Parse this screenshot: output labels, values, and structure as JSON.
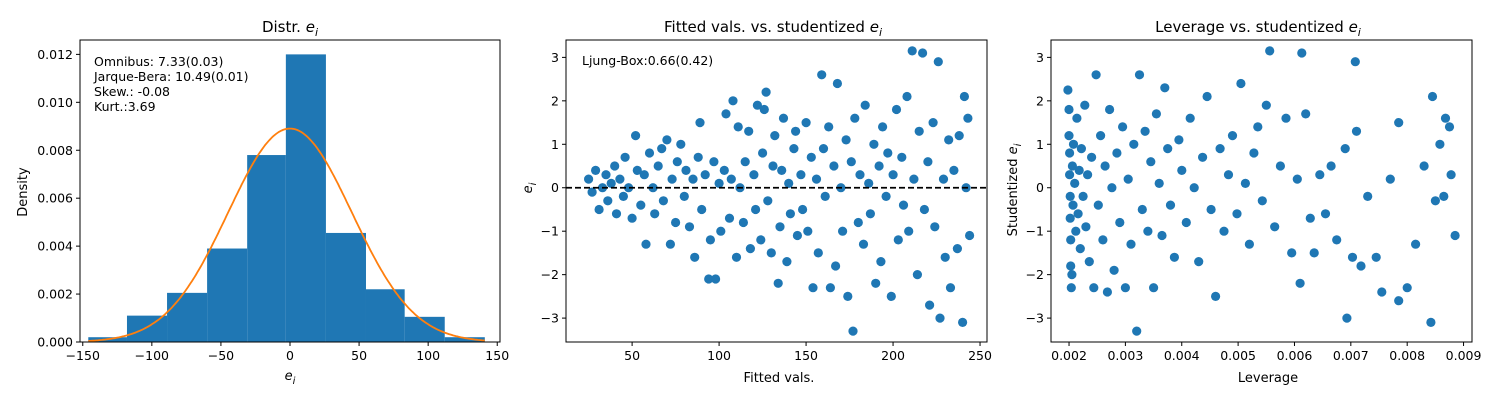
{
  "colors": {
    "primary": "#1f77b4",
    "density_curve": "#ff7f0e",
    "zero_line": "#000000"
  },
  "chart_data": [
    {
      "type": "bar",
      "title": "Distr. e_i",
      "xlabel": "e_i",
      "ylabel": "Density",
      "xlim": [
        -152,
        152
      ],
      "ylim": [
        0,
        0.0126
      ],
      "xticks": [
        "-150",
        "-100",
        "-50",
        "0",
        "50",
        "100",
        "150"
      ],
      "yticks": [
        "0.000",
        "0.002",
        "0.004",
        "0.006",
        "0.008",
        "0.010",
        "0.012"
      ],
      "bin_edges": [
        -146,
        -118,
        -89,
        -60,
        -31,
        -3,
        26,
        55,
        83,
        112,
        141
      ],
      "values": [
        0.0002,
        0.0011,
        0.00205,
        0.0039,
        0.0078,
        0.012,
        0.00455,
        0.0022,
        0.00105,
        0.0002
      ],
      "density_curve": {
        "mean": 0,
        "sd": 44.8
      },
      "annotations": [
        "Omnibus: 7.33(0.03)",
        "Jarque-Bera: 10.49(0.01)",
        "Skew.: -0.08",
        "Kurt.:3.69"
      ]
    },
    {
      "type": "scatter",
      "title": "Fitted vals. vs. studentized e_i",
      "xlabel": "Fitted vals.",
      "ylabel": "e_i",
      "xlim": [
        12,
        254
      ],
      "ylim": [
        -3.55,
        3.4
      ],
      "xticks": [
        "50",
        "100",
        "150",
        "200",
        "250"
      ],
      "yticks": [
        "-3",
        "-2",
        "-1",
        "0",
        "1",
        "2",
        "3"
      ],
      "reference_line": 0,
      "annotations": [
        "Ljung-Box:0.66(0.42)"
      ],
      "points": [
        [
          25,
          0.2
        ],
        [
          27,
          -0.1
        ],
        [
          29,
          0.4
        ],
        [
          31,
          -0.5
        ],
        [
          33,
          0.0
        ],
        [
          35,
          0.3
        ],
        [
          36,
          -0.3
        ],
        [
          38,
          0.1
        ],
        [
          40,
          0.5
        ],
        [
          41,
          -0.6
        ],
        [
          43,
          0.2
        ],
        [
          45,
          -0.2
        ],
        [
          46,
          0.7
        ],
        [
          48,
          0.0
        ],
        [
          50,
          -0.7
        ],
        [
          52,
          1.2
        ],
        [
          53,
          0.4
        ],
        [
          55,
          -0.4
        ],
        [
          57,
          0.3
        ],
        [
          58,
          -1.3
        ],
        [
          60,
          0.8
        ],
        [
          62,
          0.0
        ],
        [
          63,
          -0.6
        ],
        [
          65,
          0.5
        ],
        [
          67,
          0.9
        ],
        [
          68,
          -0.3
        ],
        [
          70,
          1.1
        ],
        [
          72,
          -1.3
        ],
        [
          73,
          0.2
        ],
        [
          75,
          -0.8
        ],
        [
          76,
          0.6
        ],
        [
          78,
          1.0
        ],
        [
          80,
          -0.2
        ],
        [
          81,
          0.4
        ],
        [
          83,
          -0.9
        ],
        [
          85,
          0.2
        ],
        [
          86,
          -1.6
        ],
        [
          88,
          0.7
        ],
        [
          89,
          1.5
        ],
        [
          90,
          -0.5
        ],
        [
          92,
          0.3
        ],
        [
          94,
          -2.1
        ],
        [
          95,
          -1.2
        ],
        [
          97,
          0.6
        ],
        [
          98,
          -2.1
        ],
        [
          100,
          0.1
        ],
        [
          101,
          -1.0
        ],
        [
          103,
          0.4
        ],
        [
          104,
          1.7
        ],
        [
          106,
          -0.7
        ],
        [
          107,
          0.2
        ],
        [
          108,
          2.0
        ],
        [
          110,
          -1.6
        ],
        [
          111,
          1.4
        ],
        [
          112,
          0.0
        ],
        [
          114,
          -0.8
        ],
        [
          115,
          0.6
        ],
        [
          117,
          1.3
        ],
        [
          118,
          -1.4
        ],
        [
          120,
          0.3
        ],
        [
          121,
          -0.5
        ],
        [
          122,
          1.9
        ],
        [
          124,
          -1.2
        ],
        [
          125,
          0.8
        ],
        [
          126,
          1.8
        ],
        [
          127,
          2.2
        ],
        [
          128,
          -0.3
        ],
        [
          130,
          -1.5
        ],
        [
          131,
          0.5
        ],
        [
          132,
          1.2
        ],
        [
          134,
          -2.2
        ],
        [
          135,
          -0.9
        ],
        [
          136,
          0.4
        ],
        [
          137,
          1.6
        ],
        [
          139,
          -1.7
        ],
        [
          140,
          0.1
        ],
        [
          141,
          -0.6
        ],
        [
          143,
          0.9
        ],
        [
          144,
          1.3
        ],
        [
          145,
          -1.1
        ],
        [
          147,
          0.3
        ],
        [
          148,
          -0.5
        ],
        [
          150,
          1.5
        ],
        [
          151,
          -1.0
        ],
        [
          153,
          0.7
        ],
        [
          154,
          -2.3
        ],
        [
          156,
          0.2
        ],
        [
          157,
          -1.5
        ],
        [
          159,
          2.6
        ],
        [
          160,
          0.9
        ],
        [
          161,
          -0.2
        ],
        [
          163,
          1.4
        ],
        [
          164,
          -2.3
        ],
        [
          166,
          0.5
        ],
        [
          167,
          -1.8
        ],
        [
          168,
          2.4
        ],
        [
          170,
          0.0
        ],
        [
          171,
          -1.0
        ],
        [
          173,
          1.1
        ],
        [
          174,
          -2.5
        ],
        [
          176,
          0.6
        ],
        [
          177,
          -3.3
        ],
        [
          178,
          1.6
        ],
        [
          180,
          -0.8
        ],
        [
          181,
          0.3
        ],
        [
          183,
          -1.3
        ],
        [
          184,
          1.9
        ],
        [
          186,
          0.1
        ],
        [
          187,
          -0.6
        ],
        [
          189,
          1.0
        ],
        [
          190,
          -2.2
        ],
        [
          192,
          0.5
        ],
        [
          193,
          -1.7
        ],
        [
          194,
          1.4
        ],
        [
          196,
          -0.2
        ],
        [
          197,
          0.8
        ],
        [
          199,
          -2.5
        ],
        [
          200,
          0.3
        ],
        [
          202,
          1.8
        ],
        [
          203,
          -1.2
        ],
        [
          205,
          0.7
        ],
        [
          206,
          -0.4
        ],
        [
          208,
          2.1
        ],
        [
          209,
          -1.0
        ],
        [
          211,
          3.15
        ],
        [
          212,
          0.2
        ],
        [
          214,
          -2.0
        ],
        [
          215,
          1.3
        ],
        [
          217,
          3.1
        ],
        [
          218,
          -0.5
        ],
        [
          220,
          0.6
        ],
        [
          221,
          -2.7
        ],
        [
          223,
          1.5
        ],
        [
          224,
          -0.9
        ],
        [
          226,
          2.9
        ],
        [
          227,
          -3.0
        ],
        [
          229,
          0.2
        ],
        [
          230,
          -1.6
        ],
        [
          232,
          1.1
        ],
        [
          233,
          -2.3
        ],
        [
          235,
          0.4
        ],
        [
          237,
          -1.4
        ],
        [
          238,
          1.2
        ],
        [
          240,
          -3.1
        ],
        [
          241,
          2.1
        ],
        [
          242,
          0.0
        ],
        [
          243,
          1.6
        ],
        [
          244,
          -1.1
        ]
      ]
    },
    {
      "type": "scatter",
      "title": "Leverage vs. studentized e_i",
      "xlabel": "Leverage",
      "ylabel": "Studentized e_i",
      "xlim": [
        0.00168,
        0.00915
      ],
      "ylim": [
        -3.55,
        3.4
      ],
      "xticks": [
        "0.002",
        "0.003",
        "0.004",
        "0.005",
        "0.006",
        "0.007",
        "0.008",
        "0.009"
      ],
      "yticks": [
        "-3",
        "-2",
        "-1",
        "0",
        "1",
        "2",
        "3"
      ],
      "points": [
        [
          0.00198,
          2.25
        ],
        [
          0.002,
          1.8
        ],
        [
          0.002,
          1.2
        ],
        [
          0.00201,
          0.8
        ],
        [
          0.00201,
          0.3
        ],
        [
          0.00202,
          -0.2
        ],
        [
          0.00202,
          -0.7
        ],
        [
          0.00203,
          -1.2
        ],
        [
          0.00203,
          -1.8
        ],
        [
          0.00204,
          -2.3
        ],
        [
          0.00205,
          -2.0
        ],
        [
          0.00206,
          0.5
        ],
        [
          0.00207,
          -0.4
        ],
        [
          0.00208,
          1.0
        ],
        [
          0.0021,
          0.1
        ],
        [
          0.00212,
          -1.0
        ],
        [
          0.00214,
          1.6
        ],
        [
          0.00216,
          -0.6
        ],
        [
          0.00218,
          0.4
        ],
        [
          0.0022,
          -1.4
        ],
        [
          0.00222,
          0.9
        ],
        [
          0.00225,
          -0.2
        ],
        [
          0.00228,
          1.9
        ],
        [
          0.0023,
          -0.9
        ],
        [
          0.00233,
          0.3
        ],
        [
          0.00236,
          -1.7
        ],
        [
          0.0024,
          0.7
        ],
        [
          0.00244,
          -2.3
        ],
        [
          0.00248,
          2.6
        ],
        [
          0.00252,
          -0.4
        ],
        [
          0.00256,
          1.2
        ],
        [
          0.0026,
          -1.2
        ],
        [
          0.00264,
          0.5
        ],
        [
          0.00268,
          -2.4
        ],
        [
          0.00272,
          1.8
        ],
        [
          0.00276,
          0.0
        ],
        [
          0.0028,
          -1.9
        ],
        [
          0.00285,
          0.8
        ],
        [
          0.0029,
          -0.8
        ],
        [
          0.00295,
          1.4
        ],
        [
          0.003,
          -2.3
        ],
        [
          0.00305,
          0.2
        ],
        [
          0.0031,
          -1.3
        ],
        [
          0.00315,
          1.0
        ],
        [
          0.0032,
          -3.3
        ],
        [
          0.00325,
          2.6
        ],
        [
          0.0033,
          -0.5
        ],
        [
          0.00335,
          1.3
        ],
        [
          0.0034,
          -1.0
        ],
        [
          0.00345,
          0.6
        ],
        [
          0.0035,
          -2.3
        ],
        [
          0.00355,
          1.7
        ],
        [
          0.0036,
          0.1
        ],
        [
          0.00365,
          -1.1
        ],
        [
          0.0037,
          2.3
        ],
        [
          0.00375,
          0.9
        ],
        [
          0.0038,
          -0.4
        ],
        [
          0.00387,
          -1.6
        ],
        [
          0.00395,
          1.1
        ],
        [
          0.004,
          0.4
        ],
        [
          0.00408,
          -0.8
        ],
        [
          0.00415,
          1.6
        ],
        [
          0.00422,
          0.0
        ],
        [
          0.0043,
          -1.7
        ],
        [
          0.00437,
          0.7
        ],
        [
          0.00445,
          2.1
        ],
        [
          0.00452,
          -0.5
        ],
        [
          0.0046,
          -2.5
        ],
        [
          0.00468,
          0.9
        ],
        [
          0.00475,
          -1.0
        ],
        [
          0.00483,
          0.3
        ],
        [
          0.0049,
          1.2
        ],
        [
          0.00498,
          -0.6
        ],
        [
          0.00505,
          2.4
        ],
        [
          0.00513,
          0.1
        ],
        [
          0.0052,
          -1.3
        ],
        [
          0.00528,
          0.8
        ],
        [
          0.00535,
          1.4
        ],
        [
          0.00543,
          -0.3
        ],
        [
          0.0055,
          1.9
        ],
        [
          0.00556,
          3.15
        ],
        [
          0.00565,
          -0.9
        ],
        [
          0.00575,
          0.5
        ],
        [
          0.00585,
          1.6
        ],
        [
          0.00595,
          -1.5
        ],
        [
          0.00605,
          0.2
        ],
        [
          0.0061,
          -2.2
        ],
        [
          0.00613,
          3.1
        ],
        [
          0.0062,
          1.7
        ],
        [
          0.00628,
          -0.7
        ],
        [
          0.00635,
          -1.5
        ],
        [
          0.00645,
          0.3
        ],
        [
          0.00655,
          -0.6
        ],
        [
          0.00665,
          0.5
        ],
        [
          0.00675,
          -1.2
        ],
        [
          0.0069,
          0.9
        ],
        [
          0.00693,
          -3.0
        ],
        [
          0.00703,
          -1.6
        ],
        [
          0.00708,
          2.9
        ],
        [
          0.0071,
          1.3
        ],
        [
          0.00718,
          -1.8
        ],
        [
          0.0073,
          -0.2
        ],
        [
          0.00745,
          -1.6
        ],
        [
          0.00755,
          -2.4
        ],
        [
          0.0077,
          0.2
        ],
        [
          0.00785,
          1.5
        ],
        [
          0.00785,
          -2.6
        ],
        [
          0.008,
          -2.3
        ],
        [
          0.00815,
          -1.3
        ],
        [
          0.0083,
          0.5
        ],
        [
          0.00842,
          -3.1
        ],
        [
          0.00845,
          2.1
        ],
        [
          0.0085,
          -0.3
        ],
        [
          0.00858,
          1.0
        ],
        [
          0.00865,
          -0.2
        ],
        [
          0.00868,
          1.6
        ],
        [
          0.00875,
          1.4
        ],
        [
          0.00878,
          0.3
        ],
        [
          0.00885,
          -1.1
        ]
      ]
    }
  ]
}
